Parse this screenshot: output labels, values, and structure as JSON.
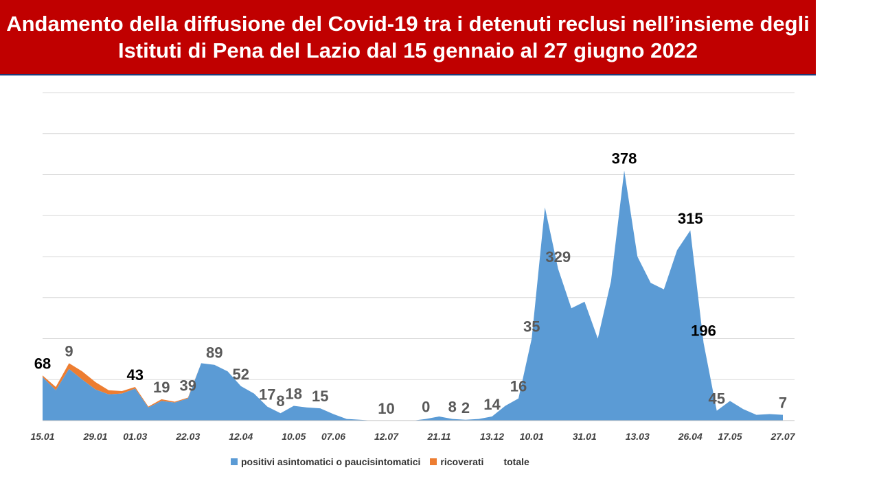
{
  "title": "Andamento della diffusione del Covid-19 tra i detenuti reclusi nell’insieme degli Istituti di Pena del Lazio dal 15 gennaio al 27 giugno 2022",
  "colors": {
    "positivi": "#5b9bd5",
    "ricoverati": "#ed7d31",
    "banner": "#c00000"
  },
  "chart_data": {
    "type": "area",
    "title": "Andamento della diffusione del Covid-19 tra i detenuti reclusi nell’insieme degli Istituti di Pena del Lazio dal 15 gennaio al 27 giugno 2022",
    "xlabel": "",
    "ylabel": "",
    "ylim": [
      0,
      400
    ],
    "grid": true,
    "legend_position": "bottom",
    "x_tick_labels": [
      "15.01",
      "29.01",
      "01.03",
      "22.03",
      "12.04",
      "10.05",
      "07.06",
      "12.07",
      "21.11",
      "13.12",
      "10.01",
      "31.01",
      "13.03",
      "26.04",
      "17.05",
      "27.07"
    ],
    "series": [
      {
        "name": "positivi asintomatici o paucisintomatici",
        "color": "#5b9bd5",
        "values": [
          53,
          37,
          63,
          50,
          38,
          32,
          33,
          39,
          16,
          24,
          22,
          27,
          70,
          68,
          60,
          42,
          33,
          17,
          9,
          18,
          16,
          15,
          8,
          2,
          1,
          0,
          0,
          0,
          0,
          2,
          5,
          2,
          1,
          2,
          5,
          18,
          27,
          100,
          260,
          185,
          137,
          145,
          100,
          170,
          305,
          200,
          168,
          160,
          208,
          232,
          95,
          12,
          24,
          14,
          7,
          8,
          7
        ]
      },
      {
        "name": "ricoverati",
        "color": "#ed7d31",
        "values": [
          2,
          4,
          7,
          10,
          9,
          5,
          3,
          2,
          1,
          2,
          1,
          1,
          0,
          0,
          0,
          0,
          0,
          0,
          0,
          0,
          0,
          0,
          0,
          0,
          0,
          0,
          0,
          0,
          0,
          0,
          0,
          0,
          0,
          0,
          0,
          0,
          0,
          0,
          0,
          0,
          0,
          0,
          0,
          0,
          0,
          0,
          0,
          0,
          0,
          0,
          0,
          0,
          0,
          0,
          0,
          0,
          0
        ]
      },
      {
        "name": "totale",
        "color": "none",
        "values": []
      }
    ],
    "data_labels": [
      {
        "text": "68",
        "index": 0,
        "color": "#000000"
      },
      {
        "text": "9",
        "index": 2,
        "color": "#595959"
      },
      {
        "text": "43",
        "index": 7,
        "color": "#000000"
      },
      {
        "text": "19",
        "index": 9,
        "color": "#595959"
      },
      {
        "text": "39",
        "index": 11,
        "color": "#595959"
      },
      {
        "text": "89",
        "index": 13,
        "color": "#595959"
      },
      {
        "text": "52",
        "index": 15,
        "color": "#595959"
      },
      {
        "text": "17",
        "index": 17,
        "color": "#595959"
      },
      {
        "text": "8",
        "index": 18,
        "color": "#595959"
      },
      {
        "text": "18",
        "index": 19,
        "color": "#595959"
      },
      {
        "text": "15",
        "index": 21,
        "color": "#595959"
      },
      {
        "text": "10",
        "index": 26,
        "color": "#595959"
      },
      {
        "text": "0",
        "index": 29,
        "color": "#595959"
      },
      {
        "text": "8",
        "index": 31,
        "color": "#595959"
      },
      {
        "text": "2",
        "index": 32,
        "color": "#595959"
      },
      {
        "text": "14",
        "index": 34,
        "color": "#595959"
      },
      {
        "text": "16",
        "index": 36,
        "color": "#595959"
      },
      {
        "text": "35",
        "index": 37,
        "color": "#595959"
      },
      {
        "text": "329",
        "index": 39,
        "color": "#595959"
      },
      {
        "text": "378",
        "index": 44,
        "color": "#000000"
      },
      {
        "text": "315",
        "index": 49,
        "color": "#000000"
      },
      {
        "text": "196",
        "index": 50,
        "color": "#000000"
      },
      {
        "text": "45",
        "index": 51,
        "color": "#595959"
      },
      {
        "text": "7",
        "index": 56,
        "color": "#595959"
      }
    ]
  }
}
